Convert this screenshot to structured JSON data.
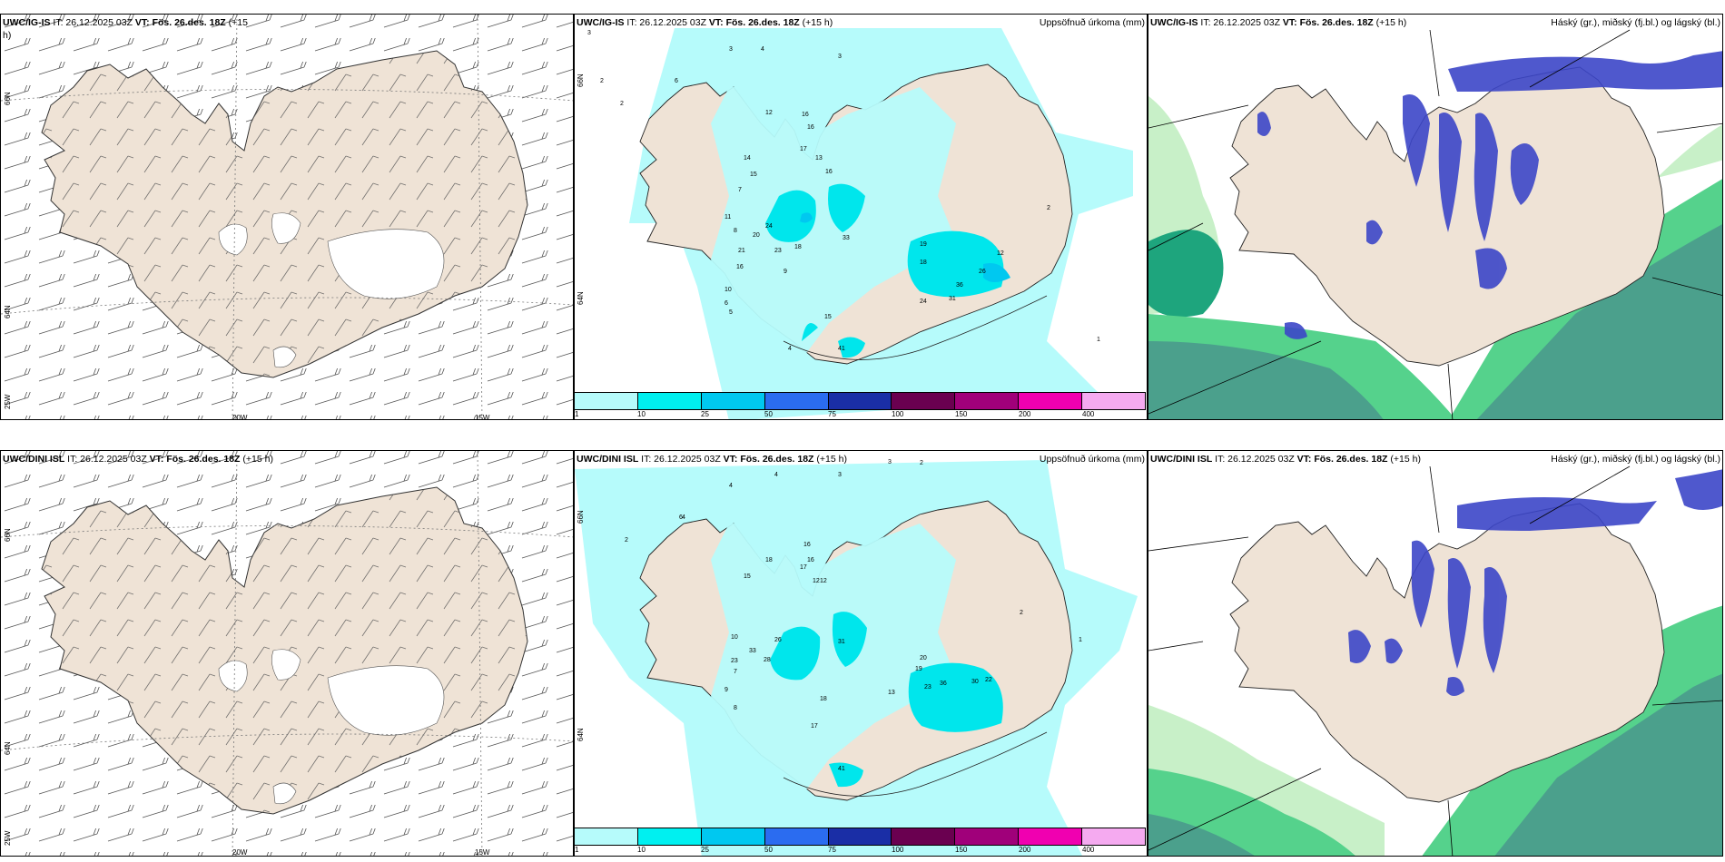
{
  "panels": [
    {
      "id": "wind-top",
      "title_bold_model": "UWC/IG-IS",
      "it": "IT: 26.12.2025 03Z",
      "vt": "VT: Fös. 26.des. 18Z",
      "lead": "(+15",
      "lead2": "h)",
      "right": ""
    },
    {
      "id": "precip-top",
      "title_bold_model": "UWC/IG-IS",
      "it": "IT: 26.12.2025 03Z",
      "vt": "VT: Fös. 26.des. 18Z",
      "lead": "(+15 h)",
      "right": "Uppsöfnuð úrkoma (mm)"
    },
    {
      "id": "cloud-top",
      "title_bold_model": "UWC/IG-IS",
      "it": "IT: 26.12.2025 03Z",
      "vt": "VT: Fös. 26.des. 18Z",
      "lead": "(+15 h)",
      "right": "Háský (gr.), miðský (fj.bl.) og lágský (bl.)"
    },
    {
      "id": "wind-bot",
      "title_bold_model": "UWC/DINI ISL",
      "it": "IT: 26.12.2025 03Z",
      "vt": "VT: Fös. 26.des. 18Z",
      "lead": "(+15 h)",
      "right": ""
    },
    {
      "id": "precip-bot",
      "title_bold_model": "UWC/DINI ISL",
      "it": "IT: 26.12.2025 03Z",
      "vt": "VT: Fös. 26.des. 18Z",
      "lead": "(+15 h)",
      "right": "Uppsöfnuð úrkoma (mm)"
    },
    {
      "id": "cloud-bot",
      "title_bold_model": "UWC/DINI ISL",
      "it": "IT: 26.12.2025 03Z",
      "vt": "VT: Fös. 26.des. 18Z",
      "lead": "(+15 h)",
      "right": "Háský (gr.), miðský (fj.bl.) og lágský (bl.)"
    }
  ],
  "axes": {
    "lon_labels": [
      "20W",
      "15W"
    ],
    "lat_labels": [
      "66N",
      "64N"
    ],
    "corner_label": "25W"
  },
  "colorbar": {
    "ticks": [
      "1",
      "10",
      "25",
      "50",
      "75",
      "100",
      "150",
      "200",
      "400"
    ],
    "colors": [
      "#b6fbfb",
      "#00f0f0",
      "#00c8f0",
      "#2b6cf0",
      "#1a2ea6",
      "#6a0050",
      "#a0007a",
      "#f000b0",
      "#f5aaf0"
    ]
  },
  "precip_labels_top": [
    "3",
    "4",
    "3",
    "2",
    "2",
    "3",
    "6",
    "16",
    "12",
    "16",
    "17",
    "14",
    "15",
    "13",
    "16",
    "24",
    "20",
    "21",
    "23",
    "16",
    "18",
    "33",
    "19",
    "18",
    "26",
    "24",
    "31",
    "36",
    "12",
    "9",
    "7",
    "6",
    "5",
    "10",
    "11",
    "8",
    "4",
    "2",
    "1",
    "15",
    "41"
  ],
  "precip_labels_bot": [
    "3",
    "4",
    "4",
    "3",
    "2",
    "2",
    "6",
    "16",
    "18",
    "16",
    "17",
    "15",
    "12",
    "26",
    "23",
    "28",
    "33",
    "31",
    "20",
    "19",
    "23",
    "36",
    "30",
    "22",
    "12",
    "10",
    "9",
    "8",
    "7",
    "4",
    "2",
    "1",
    "13",
    "17",
    "18",
    "41"
  ],
  "colors": {
    "land": "#efe3d6",
    "sea_precip": "#b6fbfb",
    "green_light": "#c8f0c8",
    "green_mid": "#55d28c",
    "green_dark": "#1ea57d",
    "teal_deep": "#4ba08c",
    "blue_cloud": "#3c46c8"
  }
}
